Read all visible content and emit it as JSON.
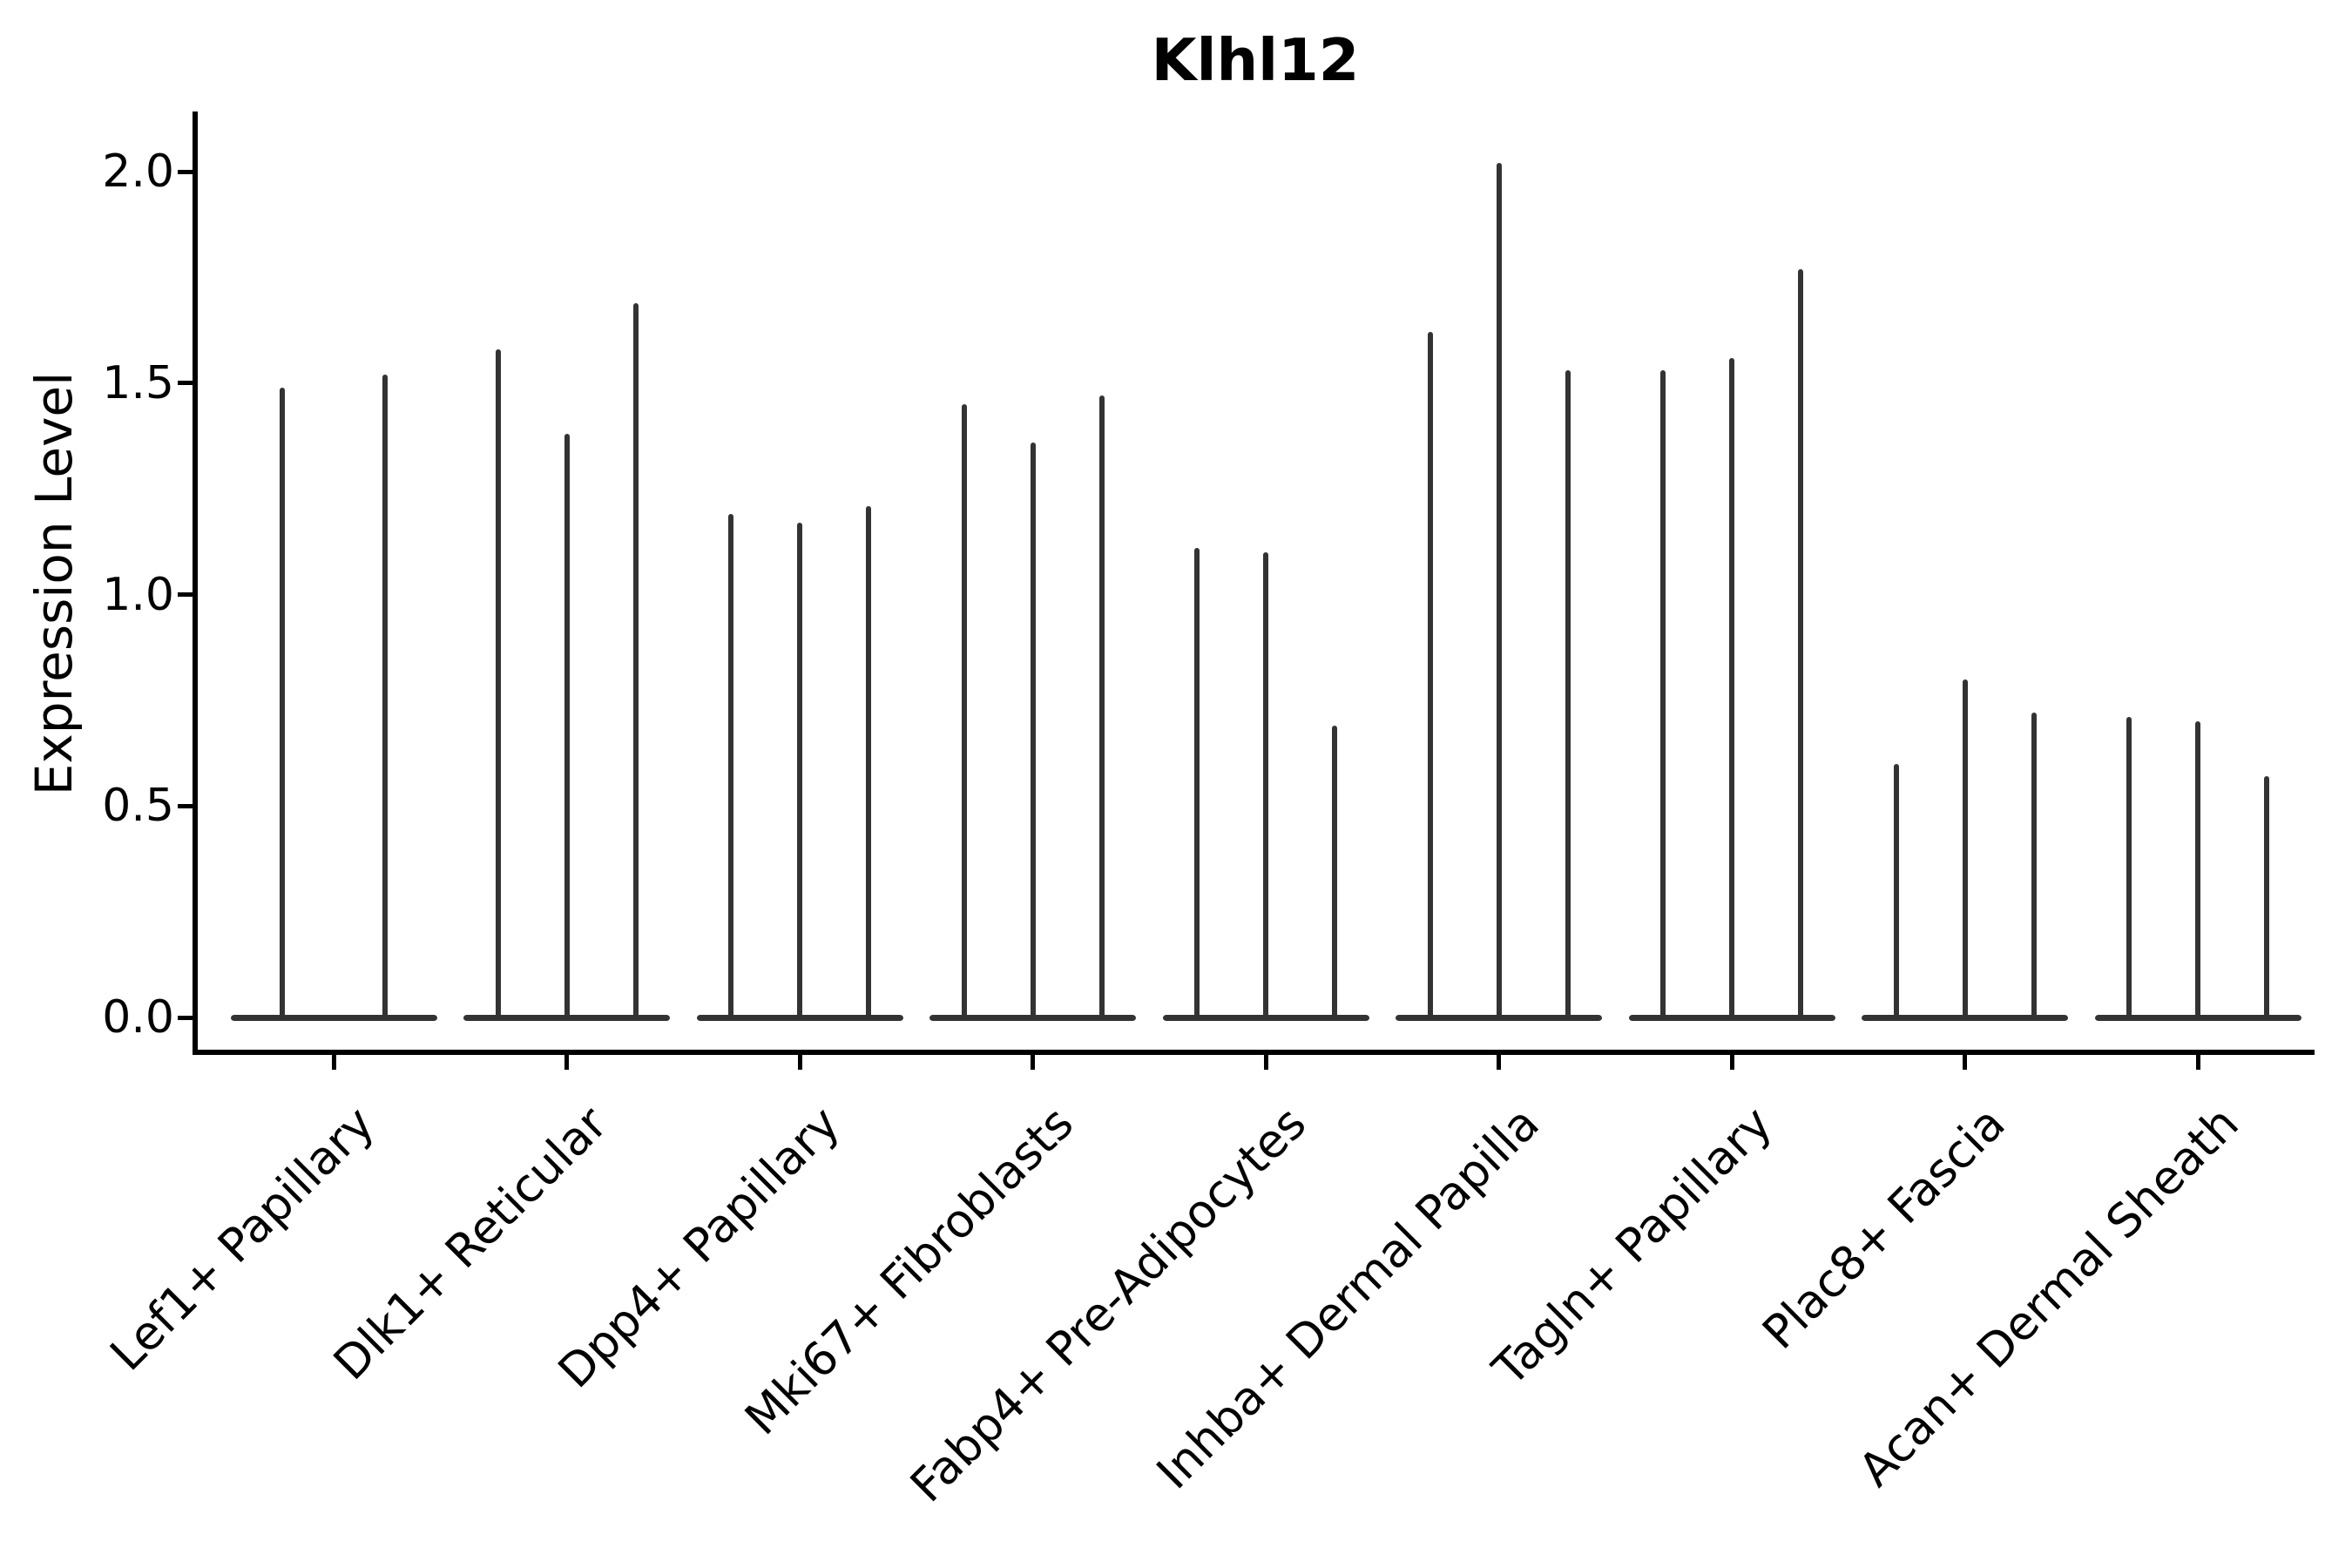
{
  "title": "Klhl12",
  "ylabel": "Expression Level",
  "colors": {
    "violin": "#333333",
    "axis": "#000000",
    "text": "#000000",
    "background": "#ffffff"
  },
  "chart_data": {
    "type": "violin",
    "title": "Klhl12",
    "xlabel": "",
    "ylabel": "Expression Level",
    "ylim": [
      0.0,
      2.1
    ],
    "yticks": [
      2.0,
      1.5,
      1.0,
      0.5,
      0.0
    ],
    "grid": false,
    "legend": false,
    "style": "needle-thin violins: nearly all density at 0 with a wide flat base and a thin tail rising to the max expression value",
    "categories": [
      "Lef1+ Papillary",
      "Dlk1+ Reticular",
      "Dpp4+ Papillary",
      "Mki67+ Fibroblasts",
      "Fabp4+ Pre-Adipocytes",
      "Inhba+ Dermal Papilla",
      "Tagln+ Papillary",
      "Plac8+ Fascia",
      "Acan+ Dermal Sheath"
    ],
    "series": [
      {
        "category": "Lef1+ Papillary",
        "violin_peaks": [
          1.49,
          1.52
        ]
      },
      {
        "category": "Dlk1+ Reticular",
        "violin_peaks": [
          1.58,
          1.38,
          1.69
        ]
      },
      {
        "category": "Dpp4+ Papillary",
        "violin_peaks": [
          1.19,
          1.17,
          1.21
        ]
      },
      {
        "category": "Mki67+ Fibroblasts",
        "violin_peaks": [
          1.45,
          1.36,
          1.47
        ]
      },
      {
        "category": "Fabp4+ Pre-Adipocytes",
        "violin_peaks": [
          1.11,
          1.1,
          0.69
        ]
      },
      {
        "category": "Inhba+ Dermal Papilla",
        "violin_peaks": [
          1.62,
          2.02,
          1.53
        ]
      },
      {
        "category": "Tagln+ Papillary",
        "violin_peaks": [
          1.53,
          1.56,
          1.77
        ]
      },
      {
        "category": "Plac8+ Fascia",
        "violin_peaks": [
          0.6,
          0.8,
          0.72
        ]
      },
      {
        "category": "Acan+ Dermal Sheath",
        "violin_peaks": [
          0.71,
          0.7,
          0.57
        ]
      }
    ]
  }
}
